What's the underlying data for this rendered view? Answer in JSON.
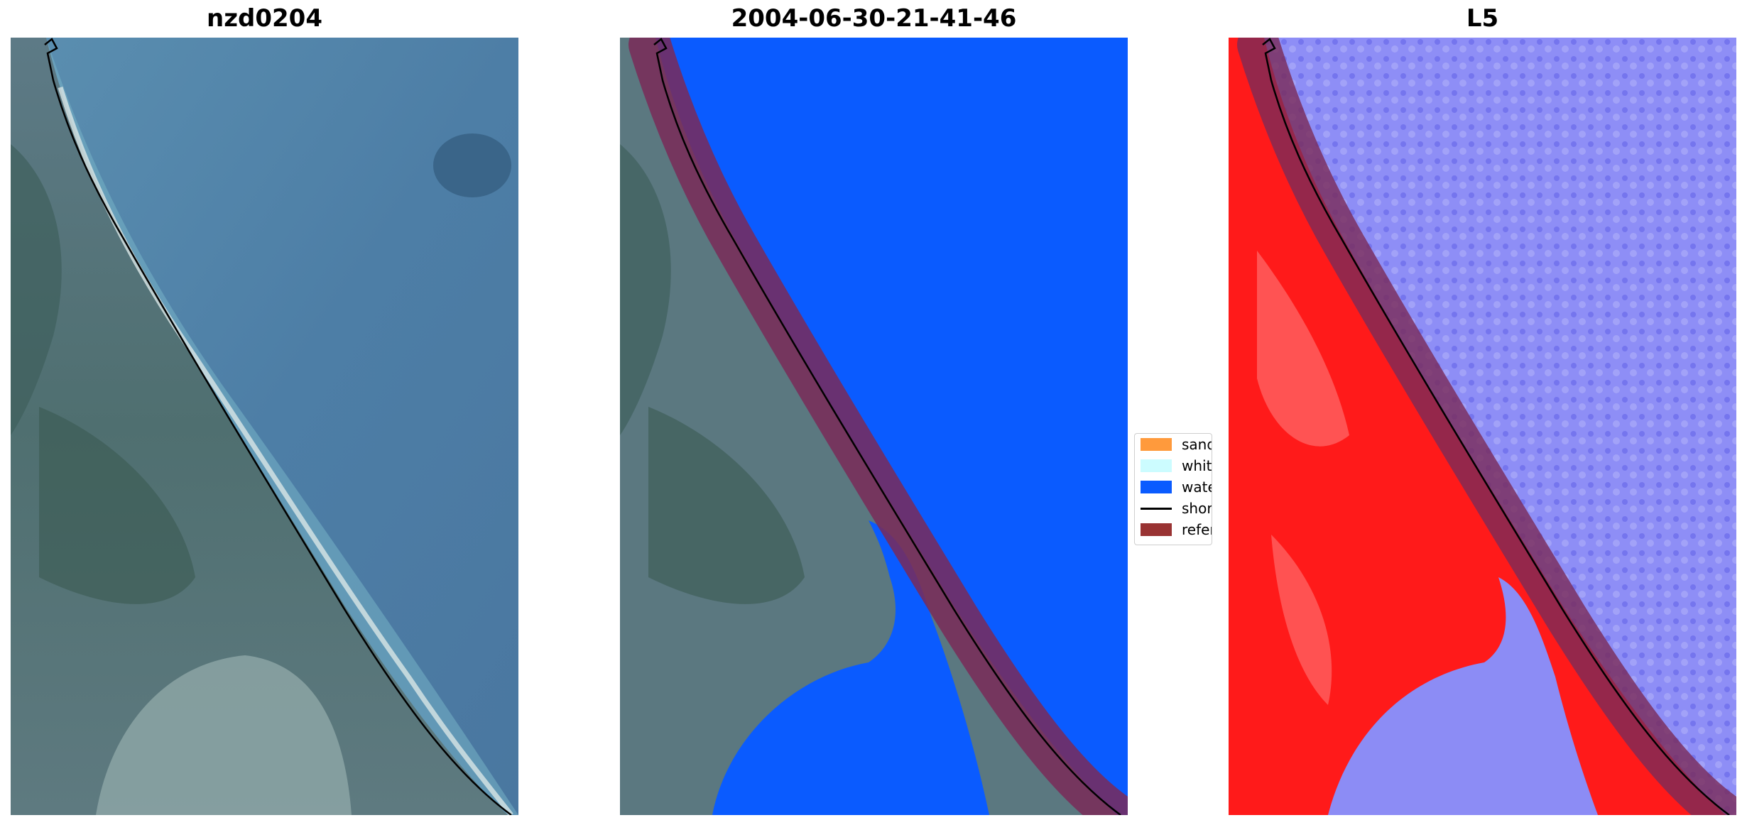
{
  "panels": [
    {
      "title": "nzd0204"
    },
    {
      "title": "2004-06-30-21-41-46"
    },
    {
      "title": "L5"
    }
  ],
  "legend": {
    "items": [
      {
        "label": "sand",
        "color": "#ff9a3c"
      },
      {
        "label": "whitewater",
        "color": "#ccfcff"
      },
      {
        "label": "water",
        "color": "#0a5bff"
      },
      {
        "label": "shoreline",
        "color": "#000000",
        "kind": "line"
      },
      {
        "label": "reference shoreline buffer",
        "color": "#993333"
      }
    ]
  },
  "colors": {
    "water": "#0a5bff",
    "buffer": "#7a2440",
    "shoreline": "#000000",
    "land_index": "#ff1010",
    "water_index": "#8c8cf5"
  }
}
